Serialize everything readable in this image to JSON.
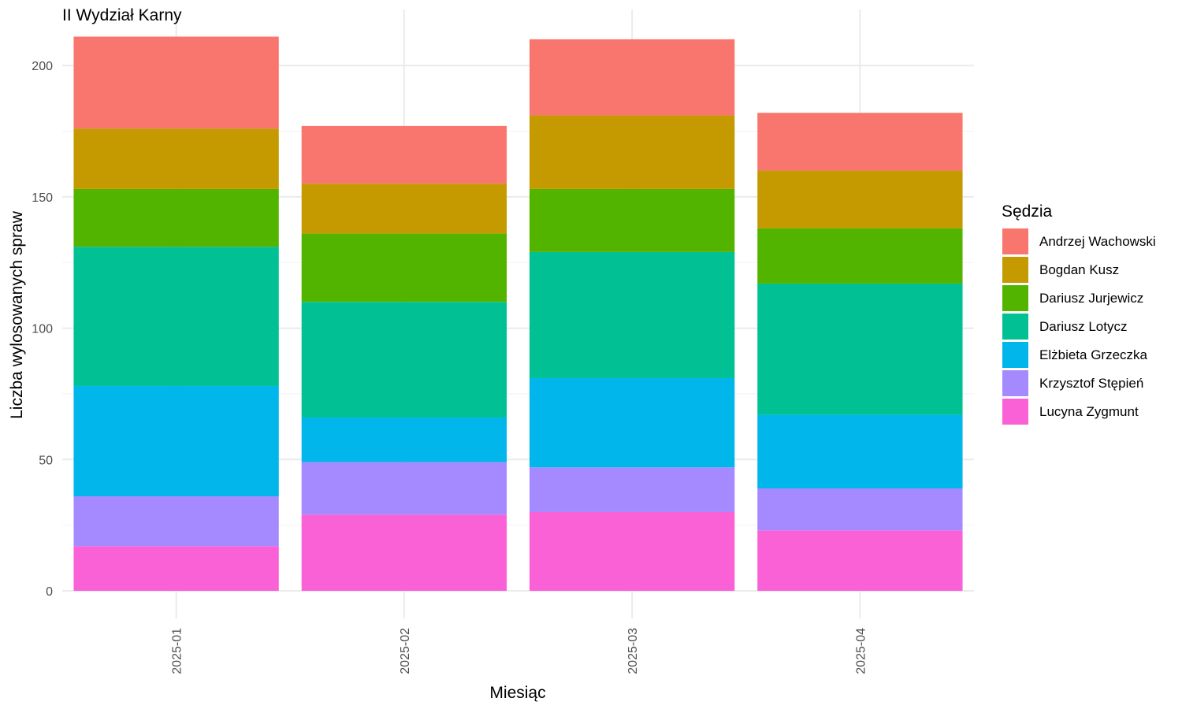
{
  "chart_data": {
    "type": "bar",
    "stacked": true,
    "title": "II Wydział Karny",
    "xlabel": "Miesiąc",
    "ylabel": "Liczba wylosowanych spraw",
    "categories": [
      "2025-01",
      "2025-02",
      "2025-03",
      "2025-04"
    ],
    "ylim": [
      0,
      212
    ],
    "yticks": [
      0,
      50,
      100,
      150,
      200
    ],
    "grid": true,
    "legend_title": "Sędzia",
    "legend_position": "right",
    "series": [
      {
        "name": "Andrzej Wachowski",
        "color": "#F8766D",
        "values": [
          35,
          22,
          29,
          22
        ]
      },
      {
        "name": "Bogdan Kusz",
        "color": "#C49A00",
        "values": [
          23,
          19,
          28,
          22
        ]
      },
      {
        "name": "Dariusz Jurjewicz",
        "color": "#53B400",
        "values": [
          22,
          26,
          24,
          21
        ]
      },
      {
        "name": "Dariusz Lotycz",
        "color": "#00C094",
        "values": [
          53,
          44,
          48,
          50
        ]
      },
      {
        "name": "Elżbieta Grzeczka",
        "color": "#00B6EB",
        "values": [
          42,
          17,
          34,
          28
        ]
      },
      {
        "name": "Krzysztof Stępień",
        "color": "#A58AFF",
        "values": [
          19,
          20,
          17,
          16
        ]
      },
      {
        "name": "Lucyna Zygmunt",
        "color": "#FB61D7",
        "values": [
          17,
          29,
          30,
          23
        ]
      }
    ]
  }
}
